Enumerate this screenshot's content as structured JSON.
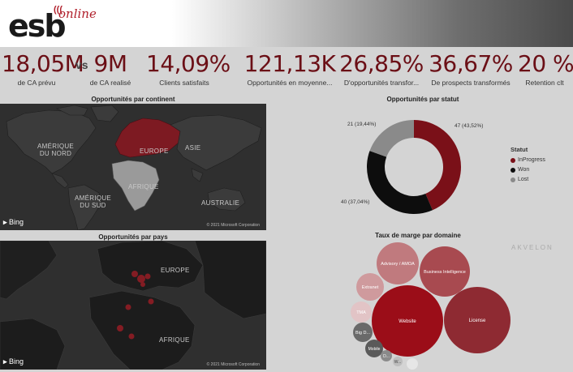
{
  "logo": {
    "esb": "esb",
    "online": "online"
  },
  "kpis": [
    {
      "value": "18,05M",
      "label": "de CA prévu"
    },
    {
      "value": "9M",
      "label": "de CA realisé"
    },
    {
      "value": "14,09%",
      "label": "Clients satisfaits"
    },
    {
      "value": "121,13K",
      "label": "Opportunités en moyenne..."
    },
    {
      "value": "26,85%",
      "label": "D'opportunités transfor..."
    },
    {
      "value": "36,67%",
      "label": "De prospects transformés"
    },
    {
      "value": "20 %",
      "label": "Retention clt"
    }
  ],
  "vs": "vs",
  "map1": {
    "title": "Opportunités par continent",
    "labels": {
      "north_america": "AMÉRIQUE\nDU NORD",
      "europe": "EUROPE",
      "asia": "ASIE",
      "africa": "AFRIQUE",
      "south_america": "AMÉRIQUE\nDU SUD",
      "australia": "AUSTRALIE"
    },
    "bing": "Bing",
    "copyright": "© 2021 Microsoft Corporation"
  },
  "map2": {
    "title": "Opportunités par pays",
    "labels": {
      "europe": "EUROPE",
      "africa": "AFRIQUE"
    },
    "bing": "Bing",
    "copyright": "© 2021 Microsoft Corporation"
  },
  "donut": {
    "title": "Opportunités par statut",
    "legend_title": "Statut",
    "colors": {
      "InProgress": "#7a1018",
      "Won": "#0d0d0d",
      "Lost": "#8a8a8a"
    },
    "chart_data": {
      "type": "pie",
      "categories": [
        "InProgress",
        "Won",
        "Lost"
      ],
      "values": [
        47,
        40,
        21
      ],
      "percent": [
        43.52,
        37.04,
        19.44
      ]
    },
    "labels": {
      "inprogress": "47 (43,52%)",
      "won": "40 (37,04%)",
      "lost": "21 (19,44%)"
    }
  },
  "bubbles": {
    "title": "Taux de marge par domaine",
    "watermark": "AKVELON",
    "items": [
      {
        "label": "Website",
        "color": "#9b0d18"
      },
      {
        "label": "License",
        "color": "#8e2a32"
      },
      {
        "label": "Business Intelligence",
        "color": "#a84a50"
      },
      {
        "label": "Advisory / AMOA",
        "color": "#c07a7e"
      },
      {
        "label": "Extranet",
        "color": "#cf9a9d"
      },
      {
        "label": "TMA",
        "color": "#e2c4c6"
      },
      {
        "label": "Big D...",
        "color": "#6a6a6a"
      },
      {
        "label": "Mobile",
        "color": "#5a5a5a"
      },
      {
        "label": "D...",
        "color": "#8a8a8a"
      },
      {
        "label": "W...",
        "color": "#bdbdbd"
      },
      {
        "label": "",
        "color": "#e6e6e6"
      }
    ]
  }
}
